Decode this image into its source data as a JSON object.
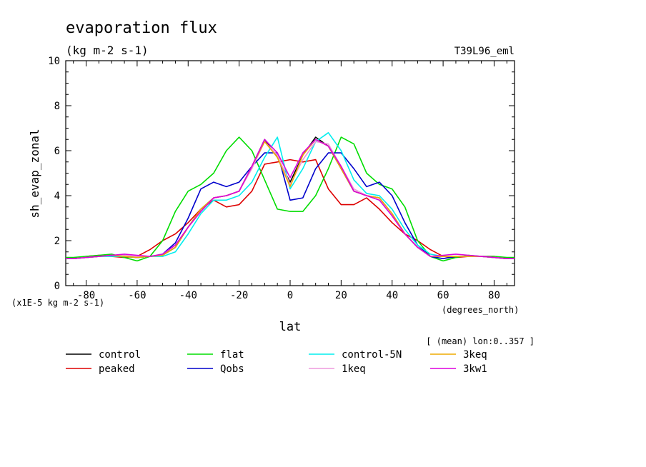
{
  "chart_data": {
    "type": "line",
    "title": "evaporation flux",
    "subtitle": "(kg m-2 s-1)",
    "run_label": "T39L96_eml",
    "xlabel": "lat",
    "x_units": "(degrees_north)",
    "ylabel": "sh_evap_zonal",
    "y_units": "(x1E-5 kg m-2 s-1)",
    "note": "[ (mean) lon:0..357 ]",
    "xlim": [
      -88,
      88
    ],
    "ylim": [
      0,
      10
    ],
    "xticks": [
      -80,
      -60,
      -40,
      -20,
      0,
      20,
      40,
      60,
      80
    ],
    "yticks": [
      0,
      2,
      4,
      6,
      8,
      10
    ],
    "grid": false,
    "legend_position": "bottom",
    "x": [
      -88,
      -85,
      -80,
      -75,
      -70,
      -65,
      -60,
      -55,
      -50,
      -45,
      -40,
      -35,
      -30,
      -25,
      -20,
      -15,
      -10,
      -5,
      0,
      5,
      10,
      15,
      20,
      25,
      30,
      35,
      40,
      45,
      50,
      55,
      60,
      65,
      70,
      75,
      80,
      85,
      88
    ],
    "series": [
      {
        "name": "control",
        "color": "#000000",
        "values": [
          1.2,
          1.2,
          1.25,
          1.3,
          1.35,
          1.3,
          1.25,
          1.3,
          1.35,
          1.7,
          2.6,
          3.4,
          3.9,
          4.0,
          4.2,
          5.3,
          6.5,
          5.7,
          4.6,
          5.8,
          6.6,
          6.2,
          5.2,
          4.2,
          4.0,
          3.9,
          3.2,
          2.3,
          1.7,
          1.3,
          1.3,
          1.3,
          1.3,
          1.3,
          1.25,
          1.2,
          1.2
        ]
      },
      {
        "name": "peaked",
        "color": "#dd0000",
        "values": [
          1.2,
          1.2,
          1.3,
          1.35,
          1.3,
          1.25,
          1.3,
          1.6,
          2.0,
          2.3,
          2.8,
          3.4,
          3.8,
          3.5,
          3.6,
          4.2,
          5.4,
          5.5,
          5.6,
          5.5,
          5.6,
          4.3,
          3.6,
          3.6,
          3.9,
          3.4,
          2.8,
          2.3,
          2.0,
          1.6,
          1.3,
          1.25,
          1.3,
          1.3,
          1.3,
          1.2,
          1.2
        ]
      },
      {
        "name": "flat",
        "color": "#00dd00",
        "values": [
          1.25,
          1.25,
          1.3,
          1.35,
          1.4,
          1.25,
          1.1,
          1.3,
          2.0,
          3.3,
          4.2,
          4.5,
          5.0,
          6.0,
          6.6,
          6.0,
          4.7,
          3.4,
          3.3,
          3.3,
          4.0,
          5.2,
          6.6,
          6.3,
          5.0,
          4.5,
          4.3,
          3.5,
          2.0,
          1.3,
          1.1,
          1.25,
          1.35,
          1.3,
          1.3,
          1.25,
          1.25
        ]
      },
      {
        "name": "Qobs",
        "color": "#0000cc",
        "values": [
          1.2,
          1.2,
          1.25,
          1.3,
          1.35,
          1.3,
          1.25,
          1.3,
          1.4,
          1.9,
          3.0,
          4.3,
          4.6,
          4.4,
          4.6,
          5.3,
          5.9,
          5.9,
          3.8,
          3.9,
          5.2,
          5.9,
          5.9,
          5.2,
          4.4,
          4.6,
          4.0,
          2.8,
          1.8,
          1.3,
          1.2,
          1.3,
          1.3,
          1.3,
          1.25,
          1.2,
          1.2
        ]
      },
      {
        "name": "control-5N",
        "color": "#00eeee",
        "values": [
          1.2,
          1.2,
          1.25,
          1.3,
          1.3,
          1.3,
          1.25,
          1.3,
          1.3,
          1.5,
          2.3,
          3.2,
          3.8,
          3.8,
          4.0,
          4.6,
          5.7,
          6.6,
          4.3,
          5.2,
          6.4,
          6.8,
          6.0,
          4.7,
          4.1,
          4.0,
          3.4,
          2.5,
          1.8,
          1.4,
          1.3,
          1.3,
          1.3,
          1.3,
          1.25,
          1.2,
          1.2
        ]
      },
      {
        "name": "1keq",
        "color": "#ee99dd",
        "values": [
          1.2,
          1.2,
          1.25,
          1.3,
          1.35,
          1.35,
          1.3,
          1.3,
          1.4,
          1.8,
          2.6,
          3.3,
          3.9,
          4.0,
          4.2,
          5.2,
          6.4,
          5.8,
          4.5,
          5.6,
          6.4,
          6.3,
          5.3,
          4.3,
          4.0,
          3.9,
          3.2,
          2.3,
          1.7,
          1.3,
          1.3,
          1.3,
          1.3,
          1.3,
          1.25,
          1.2,
          1.2
        ]
      },
      {
        "name": "3keq",
        "color": "#eeaa00",
        "values": [
          1.2,
          1.2,
          1.25,
          1.3,
          1.35,
          1.3,
          1.25,
          1.3,
          1.35,
          1.7,
          2.6,
          3.4,
          3.9,
          4.0,
          4.2,
          5.3,
          6.4,
          5.7,
          4.4,
          5.8,
          6.5,
          6.2,
          5.2,
          4.2,
          4.0,
          3.9,
          3.2,
          2.3,
          1.7,
          1.3,
          1.3,
          1.3,
          1.3,
          1.3,
          1.25,
          1.2,
          1.2
        ]
      },
      {
        "name": "3kw1",
        "color": "#dd00dd",
        "values": [
          1.2,
          1.2,
          1.25,
          1.3,
          1.35,
          1.4,
          1.35,
          1.3,
          1.4,
          1.8,
          2.6,
          3.3,
          3.9,
          4.0,
          4.2,
          5.3,
          6.5,
          5.9,
          4.8,
          5.9,
          6.5,
          6.2,
          5.3,
          4.2,
          4.0,
          3.8,
          3.1,
          2.3,
          1.7,
          1.3,
          1.35,
          1.4,
          1.35,
          1.3,
          1.25,
          1.2,
          1.2
        ]
      }
    ]
  }
}
